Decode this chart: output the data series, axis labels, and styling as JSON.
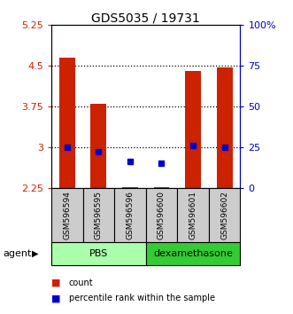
{
  "title": "GDS5035 / 19731",
  "samples": [
    "GSM596594",
    "GSM596595",
    "GSM596596",
    "GSM596600",
    "GSM596601",
    "GSM596602"
  ],
  "bar_bottoms": [
    2.25,
    2.25,
    2.25,
    2.25,
    2.25,
    2.25
  ],
  "bar_tops": [
    4.65,
    3.8,
    2.28,
    2.28,
    4.4,
    4.48
  ],
  "percentile_values": [
    3.0,
    2.93,
    2.75,
    2.72,
    3.04,
    3.0
  ],
  "bar_color": "#cc2200",
  "percentile_color": "#0000cc",
  "ylim_left": [
    2.25,
    5.25
  ],
  "ylim_right": [
    0,
    100
  ],
  "yticks_left": [
    2.25,
    3.0,
    3.75,
    4.5,
    5.25
  ],
  "ytick_labels_left": [
    "2.25",
    "3",
    "3.75",
    "4.5",
    "5.25"
  ],
  "yticks_right_vals": [
    0,
    25,
    50,
    75,
    100
  ],
  "ytick_labels_right": [
    "0",
    "25",
    "50",
    "75",
    "100%"
  ],
  "hlines": [
    3.0,
    3.75,
    4.5
  ],
  "groups": [
    {
      "label": "PBS",
      "indices": [
        0,
        1,
        2
      ],
      "color": "#aaffaa"
    },
    {
      "label": "dexamethasone",
      "indices": [
        3,
        4,
        5
      ],
      "color": "#33cc33"
    }
  ],
  "group_row_label": "agent",
  "legend_count_label": "count",
  "legend_percentile_label": "percentile rank within the sample",
  "background_color": "#ffffff",
  "plot_area_color": "#ffffff",
  "sample_box_color": "#cccccc",
  "left_label_color": "#cc2200",
  "right_label_color": "#0000cc"
}
